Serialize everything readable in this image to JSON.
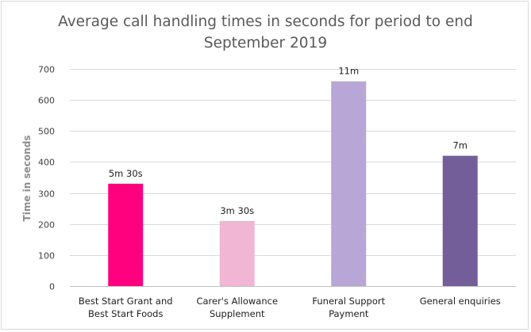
{
  "chart_data": {
    "type": "bar",
    "title_lines": [
      "Average call handling times in seconds for period to end",
      "September 2019"
    ],
    "xlabel": "",
    "ylabel": "Time in seconds",
    "ylim": [
      0,
      700
    ],
    "yticks": [
      0,
      100,
      200,
      300,
      400,
      500,
      600,
      700
    ],
    "grid": true,
    "legend": "none",
    "categories": [
      [
        "Best Start Grant and",
        "Best Start Foods"
      ],
      [
        "Carer's Allowance",
        "Supplement"
      ],
      [
        "Funeral Support",
        "Payment"
      ],
      [
        "General enquiries"
      ]
    ],
    "values": [
      330,
      210,
      660,
      420
    ],
    "data_labels": [
      "5m 30s",
      "3m 30s",
      "11m",
      "7m"
    ],
    "colors": [
      "#ff007f",
      "#f0b6d4",
      "#b8a6d6",
      "#735e99"
    ],
    "gridline_color": "#d9d9d9",
    "axis_color": "#bfbfbf"
  }
}
